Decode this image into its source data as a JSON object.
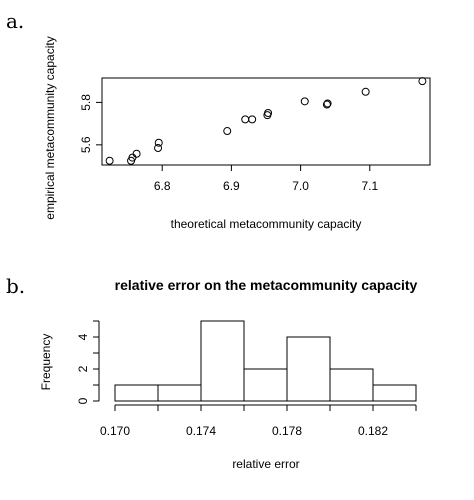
{
  "chart_data": [
    {
      "type": "scatter",
      "panel_label": "a.",
      "title": "",
      "xlabel": "theoretical metacommunity capacity",
      "ylabel": "empirical metacommunity capacity",
      "xlim": [
        6.713,
        7.187
      ],
      "ylim": [
        5.505,
        5.915
      ],
      "xticks": [
        6.8,
        6.9,
        7.0,
        7.1
      ],
      "xtick_labels": [
        "6.8",
        "6.9",
        "7.0",
        "7.1"
      ],
      "yticks": [
        5.6,
        5.8
      ],
      "ytick_labels": [
        "5.6",
        "5.8"
      ],
      "x": [
        6.724,
        6.755,
        6.757,
        6.763,
        6.794,
        6.795,
        6.894,
        6.92,
        6.93,
        6.952,
        6.953,
        7.006,
        7.038,
        7.039,
        7.094,
        7.176
      ],
      "y": [
        5.525,
        5.525,
        5.54,
        5.558,
        5.585,
        5.61,
        5.665,
        5.72,
        5.72,
        5.74,
        5.75,
        5.805,
        5.79,
        5.795,
        5.85,
        5.9
      ]
    },
    {
      "type": "bar",
      "panel_label": "b.",
      "title": "relative error on the metacommunity capacity",
      "xlabel": "relative error",
      "ylabel": "Frequency",
      "xlim": [
        0.17,
        0.184
      ],
      "ylim": [
        0,
        5
      ],
      "xticks": [
        0.17,
        0.172,
        0.174,
        0.176,
        0.178,
        0.18,
        0.182,
        0.184
      ],
      "xtick_labels": [
        "0.170",
        "",
        "0.174",
        "",
        "0.178",
        "",
        "0.182",
        ""
      ],
      "yticks": [
        0,
        2,
        4
      ],
      "ytick_labels": [
        "0",
        "2",
        "4"
      ],
      "bins": [
        [
          0.17,
          0.172
        ],
        [
          0.172,
          0.174
        ],
        [
          0.174,
          0.176
        ],
        [
          0.176,
          0.178
        ],
        [
          0.178,
          0.18
        ],
        [
          0.18,
          0.182
        ],
        [
          0.182,
          0.184
        ]
      ],
      "values": [
        1,
        1,
        5,
        2,
        4,
        2,
        1
      ]
    }
  ]
}
